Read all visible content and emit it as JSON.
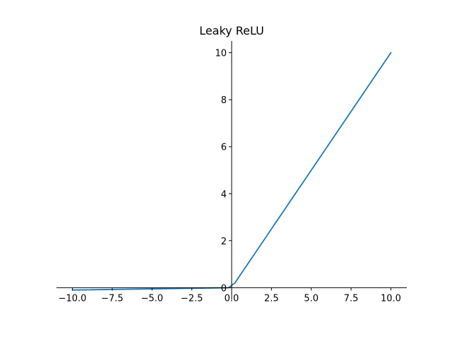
{
  "chart_data": {
    "type": "line",
    "title": "Leaky ReLU",
    "xlabel": "",
    "ylabel": "",
    "xlim": [
      -11,
      11
    ],
    "ylim": [
      -0.5,
      10.5
    ],
    "grid": false,
    "spines": "centered",
    "xticks": [
      -10.0,
      -7.5,
      -5.0,
      -2.5,
      0.0,
      2.5,
      5.0,
      7.5,
      10.0
    ],
    "xtick_labels": [
      "−10.0",
      "−7.5",
      "−5.0",
      "−2.5",
      "0.0",
      "2.5",
      "5.0",
      "7.5",
      "10.0"
    ],
    "yticks": [
      0,
      2,
      4,
      6,
      8,
      10
    ],
    "ytick_labels": [
      "0",
      "2",
      "4",
      "6",
      "8",
      "10"
    ],
    "series": [
      {
        "color": "#1f77b4",
        "x": [
          -10,
          -0.2,
          0.2,
          10
        ],
        "y": [
          -0.1,
          -0.002,
          0.2,
          10
        ]
      }
    ]
  }
}
